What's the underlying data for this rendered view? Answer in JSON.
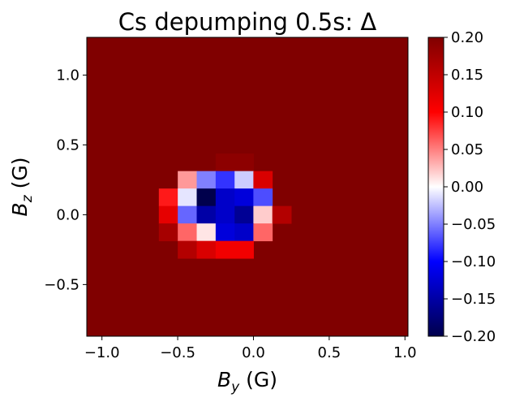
{
  "chart_data": {
    "type": "heatmap",
    "title": "Cs depumping 0.5s: Δ",
    "xlabel": "B_y (G)",
    "ylabel": "B_z (G)",
    "xlabel_main": "B",
    "xlabel_sub": "y",
    "xlabel_unit": " (G)",
    "ylabel_main": "B",
    "ylabel_sub": "z",
    "ylabel_unit": " (G)",
    "xlim": [
      -1.1,
      1.02
    ],
    "ylim": [
      -0.87,
      1.27
    ],
    "x_ticks": [
      -1.0,
      -0.5,
      0.0,
      0.5,
      1.0
    ],
    "x_tick_labels": [
      "−1.0",
      "−0.5",
      "0.0",
      "0.5",
      "1.0"
    ],
    "y_ticks": [
      -0.5,
      0.0,
      0.5,
      1.0
    ],
    "y_tick_labels": [
      "−0.5",
      "0.0",
      "0.5",
      "1.0"
    ],
    "colormap": "seismic",
    "colorbar_range": [
      -0.2,
      0.2
    ],
    "colorbar_ticks": [
      -0.2,
      -0.15,
      -0.1,
      -0.05,
      0.0,
      0.05,
      0.1,
      0.15,
      0.2
    ],
    "colorbar_tick_labels": [
      "−0.20",
      "−0.15",
      "−0.10",
      "−0.05",
      "0.00",
      "0.05",
      "0.10",
      "0.15",
      "0.20"
    ],
    "background_value": 0.2,
    "cell_size": [
      0.125,
      0.125
    ],
    "cells": [
      {
        "x": -0.312,
        "y": 0.375,
        "value": 0.2
      },
      {
        "x": -0.187,
        "y": 0.375,
        "value": 0.19
      },
      {
        "x": -0.062,
        "y": 0.375,
        "value": 0.19
      },
      {
        "x": -0.437,
        "y": 0.25,
        "value": 0.04
      },
      {
        "x": -0.312,
        "y": 0.25,
        "value": -0.05
      },
      {
        "x": -0.187,
        "y": 0.25,
        "value": -0.08
      },
      {
        "x": -0.062,
        "y": 0.25,
        "value": -0.02
      },
      {
        "x": 0.062,
        "y": 0.25,
        "value": 0.13
      },
      {
        "x": -0.562,
        "y": 0.125,
        "value": 0.09
      },
      {
        "x": -0.437,
        "y": 0.125,
        "value": -0.01
      },
      {
        "x": -0.312,
        "y": 0.125,
        "value": -0.2
      },
      {
        "x": -0.187,
        "y": 0.125,
        "value": -0.13
      },
      {
        "x": -0.062,
        "y": 0.125,
        "value": -0.12
      },
      {
        "x": 0.062,
        "y": 0.125,
        "value": -0.07
      },
      {
        "x": -0.562,
        "y": 0.0,
        "value": 0.12
      },
      {
        "x": -0.437,
        "y": 0.0,
        "value": -0.06
      },
      {
        "x": -0.312,
        "y": 0.0,
        "value": -0.15
      },
      {
        "x": -0.187,
        "y": 0.0,
        "value": -0.13
      },
      {
        "x": -0.062,
        "y": 0.0,
        "value": -0.16
      },
      {
        "x": 0.062,
        "y": 0.0,
        "value": 0.02
      },
      {
        "x": 0.187,
        "y": 0.0,
        "value": 0.16
      },
      {
        "x": -0.562,
        "y": -0.125,
        "value": 0.17
      },
      {
        "x": -0.437,
        "y": -0.125,
        "value": 0.06
      },
      {
        "x": -0.312,
        "y": -0.125,
        "value": 0.01
      },
      {
        "x": -0.187,
        "y": -0.125,
        "value": -0.12
      },
      {
        "x": -0.062,
        "y": -0.125,
        "value": -0.13
      },
      {
        "x": 0.062,
        "y": -0.125,
        "value": 0.06
      },
      {
        "x": -0.437,
        "y": -0.25,
        "value": 0.16
      },
      {
        "x": -0.312,
        "y": -0.25,
        "value": 0.13
      },
      {
        "x": -0.187,
        "y": -0.25,
        "value": 0.11
      },
      {
        "x": -0.062,
        "y": -0.25,
        "value": 0.11
      }
    ]
  }
}
